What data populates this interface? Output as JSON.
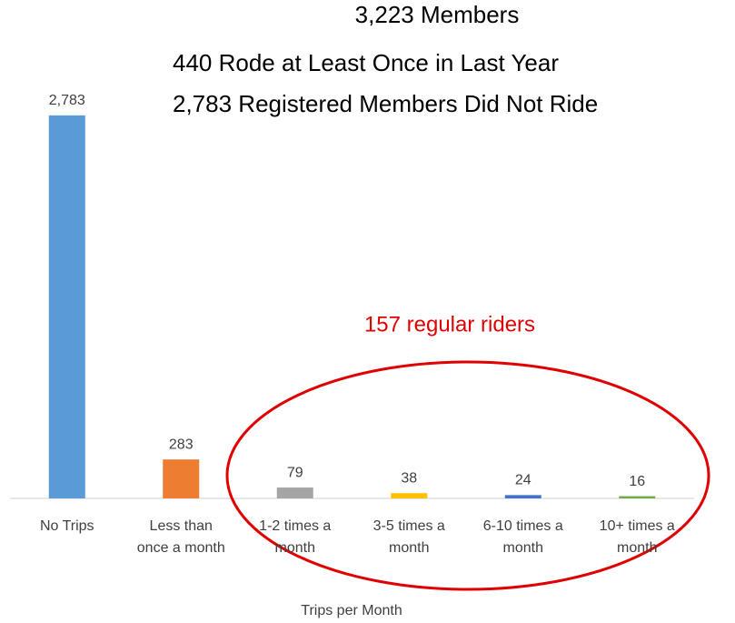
{
  "chart_data": {
    "type": "bar",
    "annotations": [
      "3,223 Members",
      "440 Rode at Least Once in Last Year",
      "2,783 Registered Members Did Not Ride"
    ],
    "callout": "157 regular riders",
    "x_label": "Trips per Month",
    "categories": [
      "No Trips",
      "Less than once a month",
      "1-2 times a month",
      "3-5 times a month",
      "6-10 times a month",
      "10+ times a month"
    ],
    "values": [
      2783,
      283,
      79,
      38,
      24,
      16
    ],
    "value_labels": [
      "2,783",
      "283",
      "79",
      "38",
      "24",
      "16"
    ],
    "colors": [
      "#5b9bd5",
      "#ed7d31",
      "#a5a5a5",
      "#ffc000",
      "#4472c4",
      "#70ad47"
    ],
    "ylim": [
      0,
      3000
    ]
  }
}
